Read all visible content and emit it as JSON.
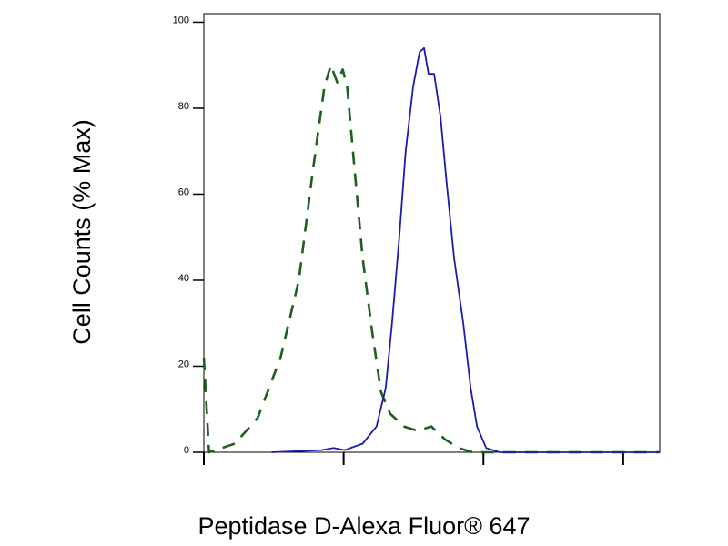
{
  "chart_data": {
    "type": "line",
    "x_label": "Peptidase D-Alexa Fluor® 647",
    "y_label": "Cell Counts (% Max)",
    "xscale": "log",
    "xlim": [
      1,
      1825
    ],
    "xticks": [
      1,
      10,
      100,
      1000
    ],
    "xtick_labels": false,
    "ylim": [
      0,
      102
    ],
    "yticks": [
      0,
      20,
      40,
      60,
      80,
      100
    ],
    "grid": false,
    "series": [
      {
        "color": "#1e5e1e",
        "style": "dashed",
        "x": [
          1,
          1.09,
          1.67,
          2.43,
          3.54,
          4.78,
          6.0,
          7.29,
          8.1,
          9.0,
          9.85,
          10.6,
          11.8,
          13.7,
          16.0,
          18.5,
          21.5,
          27.0,
          33.8,
          42.4,
          53.1,
          66.6,
          83.5,
          1825
        ],
        "values": [
          22,
          0,
          2,
          8,
          22,
          40,
          65,
          85,
          90,
          86,
          89,
          85,
          68,
          45,
          28,
          14,
          9,
          6,
          5,
          6,
          3,
          1,
          0,
          0
        ]
      },
      {
        "color": "#1c1ca8",
        "style": "solid",
        "x": [
          3.05,
          6.97,
          8.47,
          10.2,
          13.7,
          17.2,
          20.0,
          22.2,
          25.0,
          27.8,
          31.4,
          34.9,
          37.6,
          40.5,
          44.4,
          49.3,
          54.8,
          61.8,
          71.8,
          81.0,
          90.0,
          104.7,
          131,
          1825
        ],
        "values": [
          0,
          0.5,
          1,
          0.5,
          2,
          6,
          15,
          30,
          50,
          70,
          85,
          93,
          94,
          88,
          88,
          78,
          62,
          45,
          30,
          15,
          6,
          1,
          0,
          0
        ]
      }
    ]
  }
}
